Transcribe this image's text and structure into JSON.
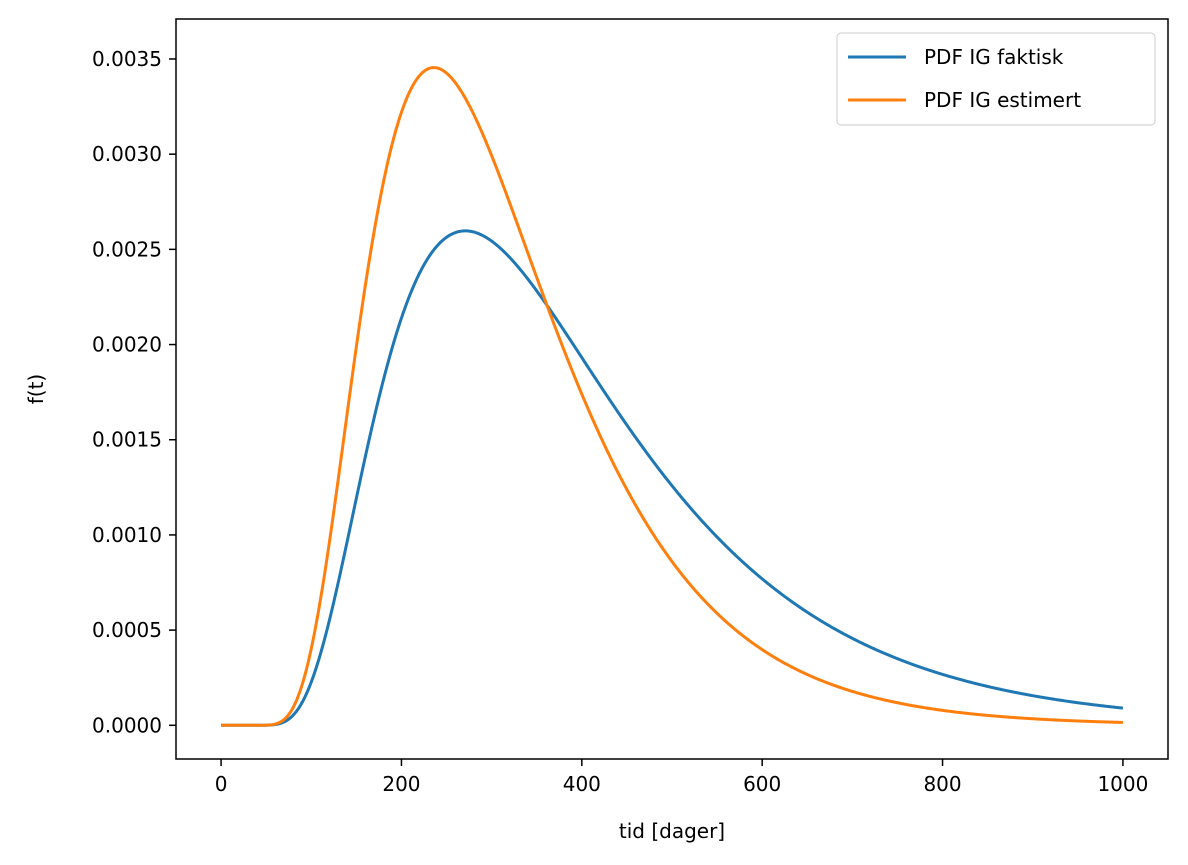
{
  "chart_data": {
    "type": "line",
    "title": "",
    "xlabel": "tid [dager]",
    "ylabel": "f(t)",
    "xlim": [
      -50,
      1050
    ],
    "ylim": [
      -0.000177,
      0.00371
    ],
    "xticks": [
      0,
      200,
      400,
      600,
      800,
      1000
    ],
    "xtick_labels": [
      "0",
      "200",
      "400",
      "600",
      "800",
      "1000"
    ],
    "yticks": [
      0.0,
      0.0005,
      0.001,
      0.0015,
      0.002,
      0.0025,
      0.003,
      0.0035
    ],
    "ytick_labels": [
      "0.0000",
      "0.0005",
      "0.0010",
      "0.0015",
      "0.0020",
      "0.0025",
      "0.0030",
      "0.0035"
    ],
    "grid": false,
    "legend_position": "top-right",
    "series": [
      {
        "name": "PDF IG faktisk",
        "color": "#1f77b4",
        "mu": 400,
        "lambda": 1500
      },
      {
        "name": "PDF IG estimert",
        "color": "#ff7f0e",
        "mu": 320,
        "lambda": 1550
      }
    ],
    "x_range": [
      0,
      1000
    ]
  }
}
